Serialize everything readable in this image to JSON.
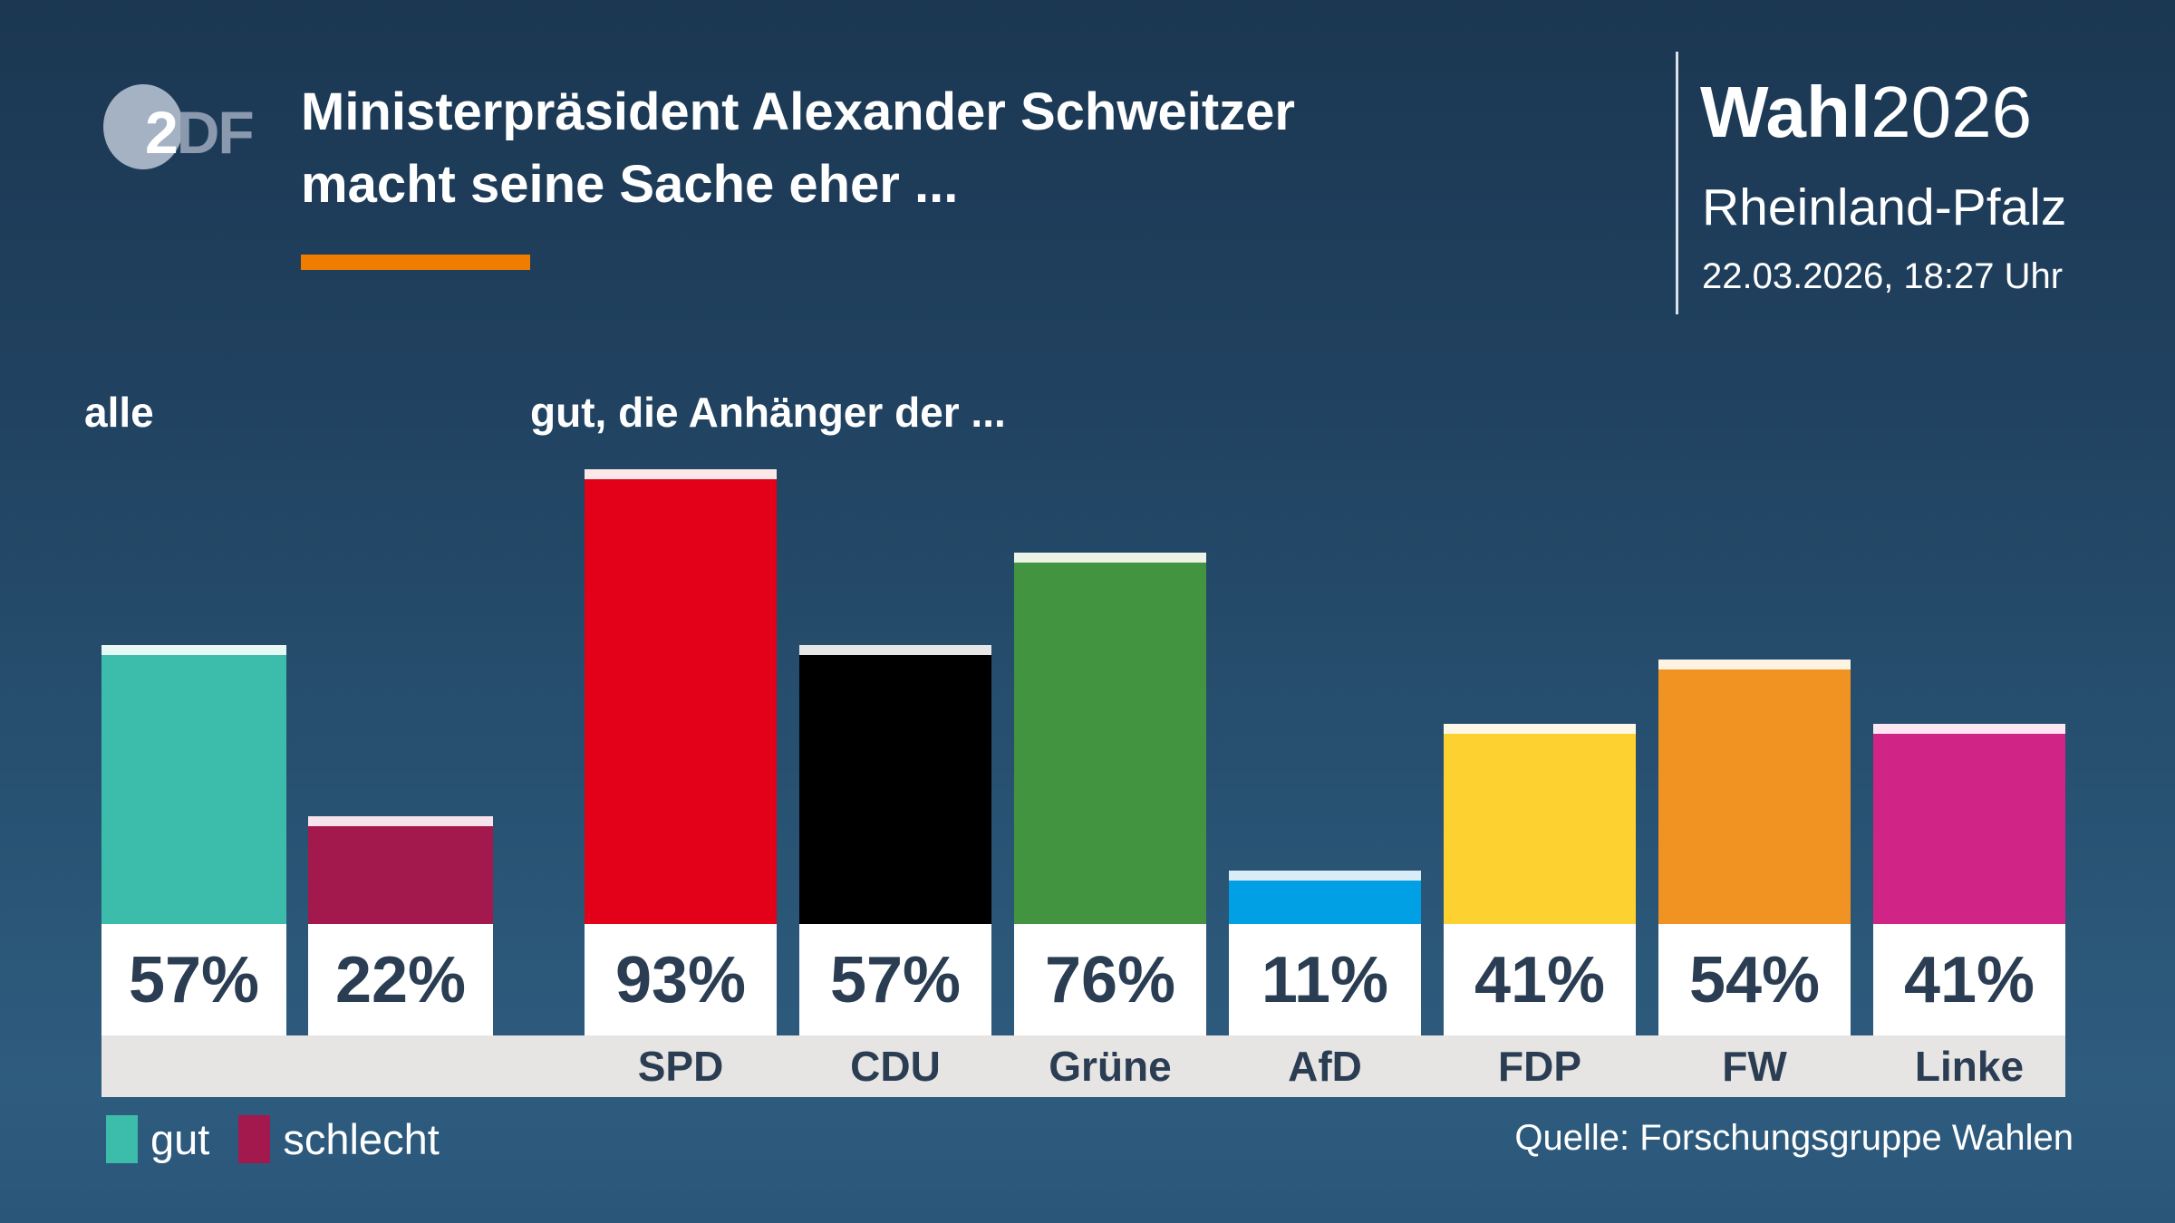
{
  "header": {
    "logo": "ZDF",
    "logo_part1": "2",
    "logo_part2": "DF",
    "title_line1": "Ministerpräsident Alexander Schweitzer",
    "title_line2": "macht seine Sache eher ...",
    "accent_color": "#f07c00",
    "brand_bold": "Wahl",
    "brand_year": "2026",
    "region": "Rheinland-Pfalz",
    "timestamp": "22.03.2026, 18:27 Uhr"
  },
  "chart_data": {
    "type": "bar",
    "title": "Ministerpräsident Alexander Schweitzer macht seine Sache eher ...",
    "unit": "%",
    "ylim": [
      0,
      100
    ],
    "grid": false,
    "group_label_left": "alle",
    "group_label_right": "gut, die Anhänger der ...",
    "bars": [
      {
        "group": "alle",
        "party": "",
        "series": "gut",
        "value": 57,
        "display": "57%",
        "color": "#3cbcab",
        "cap_color": "#e6f7f4"
      },
      {
        "group": "alle",
        "party": "",
        "series": "schlecht",
        "value": 22,
        "display": "22%",
        "color": "#a4194d",
        "cap_color": "#f6e3eb"
      },
      {
        "group": "anhaenger",
        "party": "SPD",
        "series": "gut",
        "value": 93,
        "display": "93%",
        "color": "#e30019",
        "cap_color": "#fce9e7"
      },
      {
        "group": "anhaenger",
        "party": "CDU",
        "series": "gut",
        "value": 57,
        "display": "57%",
        "color": "#000000",
        "cap_color": "#e6e6e6"
      },
      {
        "group": "anhaenger",
        "party": "Grüne",
        "series": "gut",
        "value": 76,
        "display": "76%",
        "color": "#429440",
        "cap_color": "#ecf4e7"
      },
      {
        "group": "anhaenger",
        "party": "AfD",
        "series": "gut",
        "value": 11,
        "display": "11%",
        "color": "#019fe3",
        "cap_color": "#d8edf7"
      },
      {
        "group": "anhaenger",
        "party": "FDP",
        "series": "gut",
        "value": 41,
        "display": "41%",
        "color": "#fdd12f",
        "cap_color": "#fdf8e8"
      },
      {
        "group": "anhaenger",
        "party": "FW",
        "series": "gut",
        "value": 54,
        "display": "54%",
        "color": "#f19322",
        "cap_color": "#fdf3e2"
      },
      {
        "group": "anhaenger",
        "party": "Linke",
        "series": "gut",
        "value": 41,
        "display": "41%",
        "color": "#d02487",
        "cap_color": "#fbe6f1"
      }
    ],
    "legend": [
      {
        "label": "gut",
        "color": "#3cbcab"
      },
      {
        "label": "schlecht",
        "color": "#a4194d"
      }
    ],
    "source": "Quelle: Forschungsgruppe Wahlen"
  }
}
